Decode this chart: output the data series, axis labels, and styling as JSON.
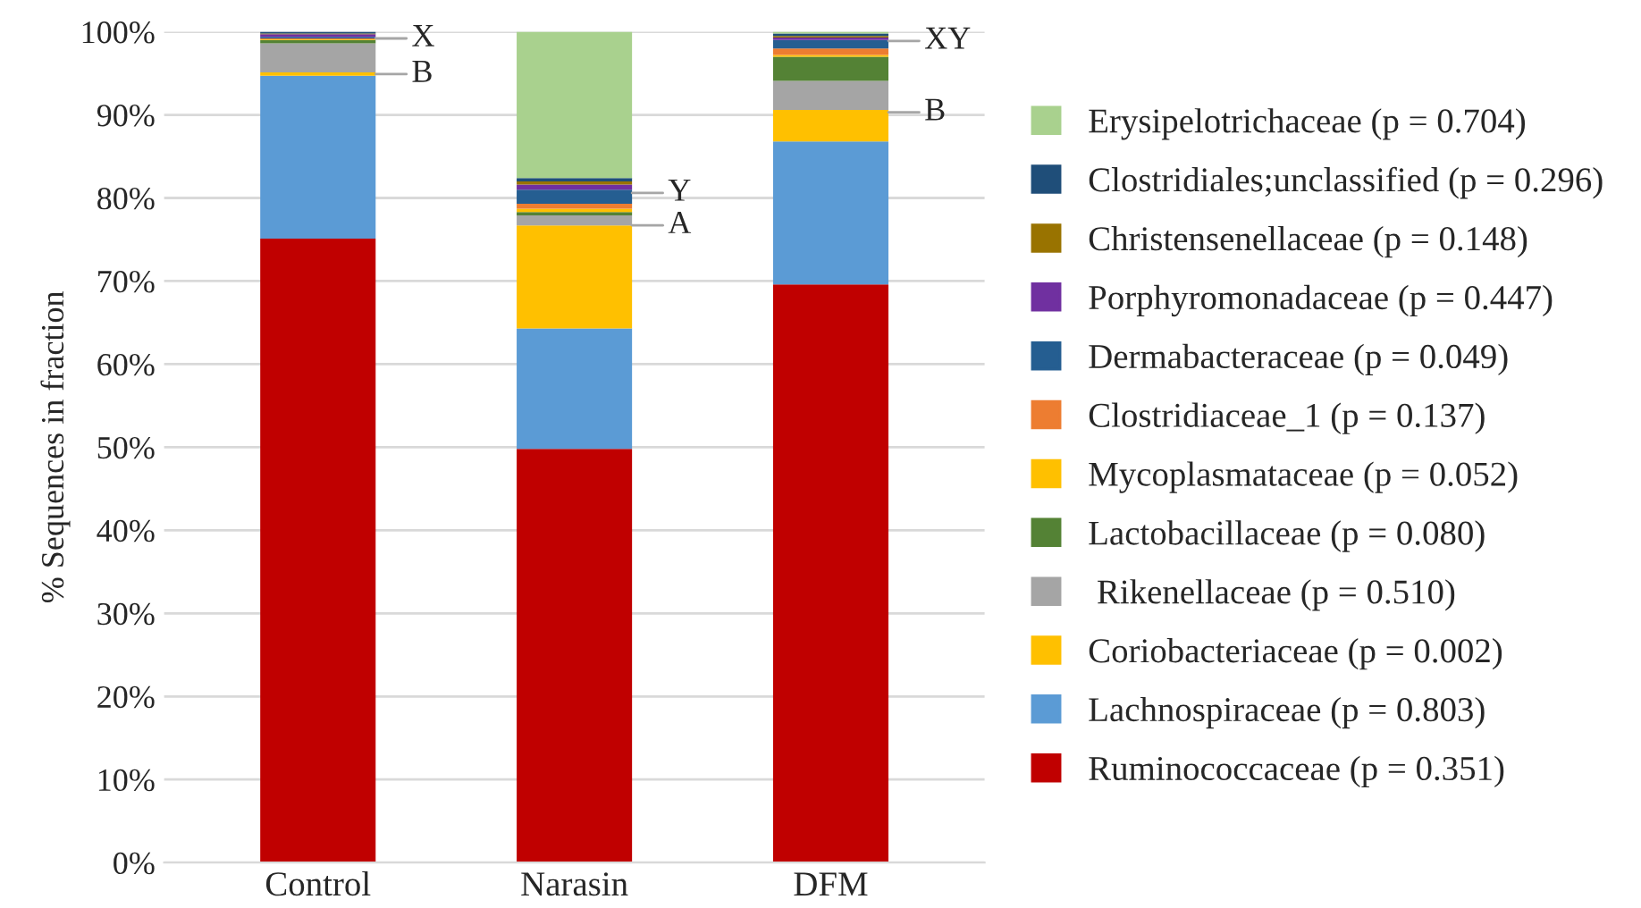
{
  "chart_data": {
    "type": "bar",
    "stacked": true,
    "ylabel": "% Sequences in fraction",
    "categories": [
      "Control",
      "Narasin",
      "DFM"
    ],
    "series": [
      {
        "name": "Ruminococcaceae (p = 0.351)",
        "color": "#c00000",
        "values": [
          75.1,
          49.8,
          69.6
        ]
      },
      {
        "name": "Lachnospiraceae (p = 0.803)",
        "color": "#5b9bd5",
        "values": [
          19.6,
          14.5,
          17.2
        ]
      },
      {
        "name": "Coriobacteriaceae (p = 0.002)",
        "color": "#ffc000",
        "values": [
          0.4,
          12.4,
          3.8
        ]
      },
      {
        "name": " Rikenellaceae (p = 0.510)",
        "color": "#a5a5a5",
        "values": [
          3.5,
          1.2,
          3.5
        ]
      },
      {
        "name": "Lactobacillaceae (p = 0.080)",
        "color": "#548235",
        "values": [
          0.4,
          0.4,
          2.9
        ]
      },
      {
        "name": "Mycoplasmataceae (p = 0.052)",
        "color": "#ffc000",
        "values": [
          0.1,
          0.4,
          0.2
        ]
      },
      {
        "name": "Clostridiaceae_1 (p = 0.137)",
        "color": "#ed7d31",
        "values": [
          0.1,
          0.6,
          0.8
        ]
      },
      {
        "name": "Dermabacteraceae (p = 0.049)",
        "color": "#255e91",
        "values": [
          0.2,
          1.7,
          1.0
        ]
      },
      {
        "name": "Porphyromonadaceae (p = 0.447)",
        "color": "#7030a0",
        "values": [
          0.3,
          0.6,
          0.3
        ]
      },
      {
        "name": "Christensenellaceae (p = 0.148)",
        "color": "#997300",
        "values": [
          0.1,
          0.4,
          0.2
        ]
      },
      {
        "name": "Clostridiales;unclassified (p = 0.296)",
        "color": "#1f4e79",
        "values": [
          0.2,
          0.4,
          0.3
        ]
      },
      {
        "name": "Erysipelotrichaceae (p = 0.704)",
        "color": "#a9d18e",
        "values": [
          0.0,
          17.6,
          0.2
        ]
      }
    ],
    "ylim": [
      0,
      100
    ],
    "yticks": [
      {
        "value": 0,
        "label": "0%"
      },
      {
        "value": 10,
        "label": "10%"
      },
      {
        "value": 20,
        "label": "20%"
      },
      {
        "value": 30,
        "label": "30%"
      },
      {
        "value": 40,
        "label": "40%"
      },
      {
        "value": 50,
        "label": "50%"
      },
      {
        "value": 60,
        "label": "60%"
      },
      {
        "value": 70,
        "label": "70%"
      },
      {
        "value": 80,
        "label": "80%"
      },
      {
        "value": 90,
        "label": "90%"
      },
      {
        "value": 100,
        "label": "100%"
      }
    ],
    "grid": "y",
    "legend": "right",
    "annotations": [
      {
        "text": "X",
        "x": "Control",
        "y": 99.2
      },
      {
        "text": "B",
        "x": "Control",
        "y": 94.9
      },
      {
        "text": "Y",
        "x": "Narasin",
        "y": 80.6
      },
      {
        "text": "A",
        "x": "Narasin",
        "y": 76.7
      },
      {
        "text": "XY",
        "x": "DFM",
        "y": 98.9
      },
      {
        "text": "B",
        "x": "DFM",
        "y": 90.3
      }
    ]
  }
}
